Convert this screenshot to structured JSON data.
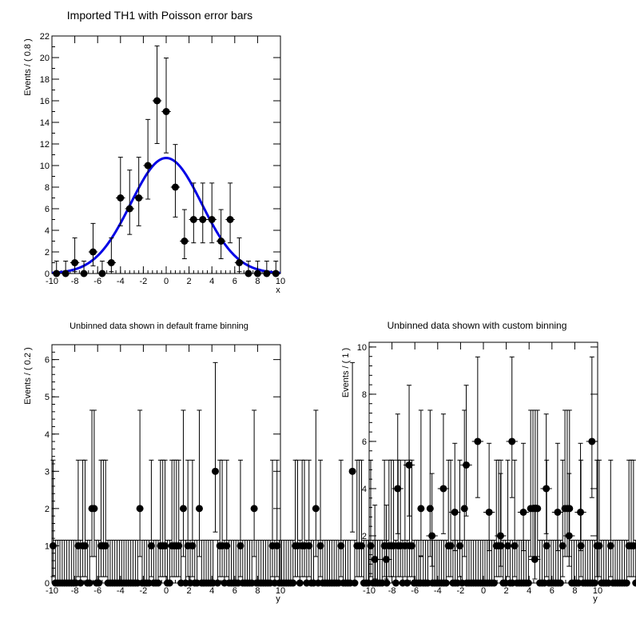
{
  "colors": {
    "background": "#ffffff",
    "fit_curve": "#0000e6",
    "marker": "#000000"
  },
  "chart_data": [
    {
      "type": "scatter",
      "title": "Imported TH1 with Poisson error bars",
      "xlabel": "x",
      "ylabel": "Events / ( 0.8 )",
      "xlim": [
        -10,
        10
      ],
      "ylim": [
        0,
        22
      ],
      "xticks": [
        "-10",
        "-8",
        "-6",
        "-4",
        "-2",
        "0",
        "2",
        "4",
        "6",
        "8",
        "10"
      ],
      "yticks": [
        "0",
        "2",
        "4",
        "6",
        "8",
        "10",
        "12",
        "14",
        "16",
        "18",
        "20",
        "22"
      ],
      "bin_width": 0.8,
      "x": [
        -9.6,
        -8.8,
        -8.0,
        -7.2,
        -6.4,
        -5.6,
        -4.8,
        -4.0,
        -3.2,
        -2.4,
        -1.6,
        -0.8,
        0.0,
        0.8,
        1.6,
        2.4,
        3.2,
        4.0,
        4.8,
        5.6,
        6.4,
        7.2,
        8.0,
        8.8,
        9.6
      ],
      "values": [
        0,
        0,
        1,
        0,
        2,
        0,
        1,
        7,
        6,
        7,
        10,
        16,
        15,
        8,
        3,
        5,
        5,
        5,
        3,
        5,
        1,
        0,
        0,
        0,
        0
      ],
      "err_low": [
        0,
        0,
        0.83,
        0,
        1.29,
        0,
        0.83,
        2.58,
        2.38,
        2.58,
        3.11,
        3.96,
        3.83,
        2.77,
        1.63,
        2.16,
        2.16,
        2.16,
        1.63,
        2.16,
        0.83,
        0,
        0,
        0,
        0
      ],
      "err_high": [
        1.15,
        1.15,
        2.3,
        1.15,
        2.64,
        1.15,
        2.3,
        3.77,
        3.58,
        3.77,
        4.27,
        5.08,
        4.96,
        3.95,
        2.92,
        3.38,
        3.38,
        3.38,
        2.92,
        3.38,
        2.3,
        1.15,
        1.15,
        1.15,
        1.15
      ],
      "fit": {
        "type": "gaussian",
        "amplitude": 10.7,
        "mean": 0.0,
        "sigma": 3.1
      }
    },
    {
      "type": "scatter",
      "title": "Unbinned data shown in default frame binning",
      "xlabel": "y",
      "ylabel": "Events / ( 0.2 )",
      "xlim": [
        -10,
        10
      ],
      "ylim": [
        0,
        6.4
      ],
      "xticks": [
        "-10",
        "-8",
        "-6",
        "-4",
        "-2",
        "0",
        "2",
        "4",
        "6",
        "8",
        "10"
      ],
      "yticks": [
        "0",
        "1",
        "2",
        "3",
        "4",
        "5",
        "6"
      ],
      "bin_width": 0.2,
      "values": [
        1,
        0,
        0,
        0,
        0,
        0,
        0,
        0,
        0,
        0,
        0,
        1,
        0,
        1,
        1,
        0,
        0,
        2,
        2,
        0,
        0,
        1,
        1,
        1,
        0,
        0,
        0,
        0,
        0,
        0,
        0,
        0,
        0,
        0,
        0,
        0,
        0,
        0,
        2,
        0,
        0,
        0,
        0,
        1,
        0,
        0,
        0,
        1,
        1,
        1,
        0,
        0,
        1,
        1,
        1,
        1,
        0,
        2,
        0,
        1,
        0,
        1,
        0,
        0,
        2,
        0,
        0,
        0,
        0,
        0,
        0,
        3,
        0,
        1,
        1,
        0,
        1,
        0,
        0,
        0,
        0,
        0,
        1,
        0,
        0,
        0,
        0,
        0,
        2,
        0,
        0,
        0,
        0,
        0,
        0,
        0,
        1,
        0,
        1,
        0,
        0,
        0,
        0,
        0,
        0,
        0,
        1,
        1,
        0,
        1,
        1,
        0,
        1,
        0,
        0,
        2,
        0,
        1,
        0,
        0,
        0,
        0,
        0,
        0,
        0,
        0,
        1,
        0,
        0,
        0,
        0,
        3,
        0,
        1,
        1,
        1,
        0,
        0,
        0,
        1,
        0,
        0,
        0,
        0,
        0,
        1,
        0,
        1,
        1,
        1,
        0,
        1,
        1,
        0,
        1,
        0,
        1,
        1,
        0,
        0,
        0,
        2,
        0,
        0,
        0,
        2,
        0,
        0,
        0,
        0,
        0,
        0,
        0,
        1,
        1,
        0,
        0,
        0,
        1,
        0,
        2,
        0,
        0,
        0,
        0,
        0,
        0,
        0,
        0,
        0,
        0,
        0,
        0,
        0,
        1,
        1,
        1,
        0,
        0,
        1,
        0,
        0,
        1,
        0,
        0,
        0,
        0,
        0,
        0,
        2,
        2,
        2,
        2,
        0,
        0,
        0,
        1,
        0,
        0,
        0,
        0,
        0,
        0,
        1,
        2,
        2,
        2,
        0,
        0,
        0,
        0,
        1,
        0,
        0,
        0,
        0,
        0,
        0,
        1,
        1,
        0,
        0,
        0,
        0,
        1,
        0,
        0,
        0,
        0,
        0,
        0,
        0,
        1,
        1,
        1,
        0,
        0,
        0,
        0,
        1,
        0,
        1,
        0,
        1,
        0,
        1,
        0,
        1,
        0,
        1,
        2,
        0,
        2,
        0,
        2
      ]
    },
    {
      "type": "scatter",
      "title": "Unbinned data shown with custom binning",
      "xlabel": "y",
      "ylabel": "Events / ( 1 )",
      "xlim": [
        -10,
        10
      ],
      "ylim": [
        0,
        10.2
      ],
      "xticks": [
        "-10",
        "-8",
        "-6",
        "-4",
        "-2",
        "0",
        "2",
        "4",
        "6",
        "8",
        "10"
      ],
      "yticks": [
        "0",
        "2",
        "4",
        "6",
        "8",
        "10"
      ],
      "bin_width": 1,
      "x": [
        -9.5,
        -8.5,
        -7.5,
        -6.5,
        -5.5,
        -4.5,
        -3.5,
        -2.5,
        -1.5,
        -0.5,
        0.5,
        1.5,
        2.5,
        3.5,
        4.5,
        5.5,
        6.5,
        7.5,
        8.5,
        9.5
      ],
      "values": [
        1,
        1,
        4,
        5,
        0,
        2,
        4,
        3,
        5,
        6,
        3,
        2,
        6,
        3,
        1,
        4,
        3,
        2,
        3,
        6
      ]
    }
  ]
}
